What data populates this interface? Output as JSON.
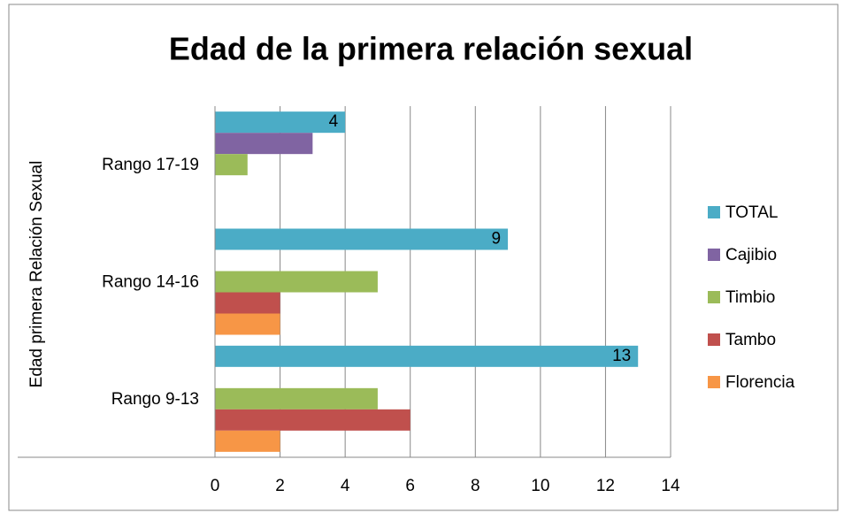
{
  "chart_data": {
    "type": "hbar",
    "title": "Edad de la primera relación sexual",
    "y_label": "Edad primera Relación Sexual",
    "categories": [
      "Rango 17-19",
      "Rango 14-16",
      "Rango 9-13"
    ],
    "series": [
      {
        "name": "TOTAL",
        "color": "#4bacc6",
        "values": [
          4,
          9,
          13
        ],
        "data_labels": true
      },
      {
        "name": "Cajibio",
        "color": "#8064a2",
        "values": [
          3,
          0,
          0
        ]
      },
      {
        "name": "Timbio",
        "color": "#9bbb59",
        "values": [
          1,
          5,
          5
        ]
      },
      {
        "name": "Tambo",
        "color": "#c0504d",
        "values": [
          0,
          2,
          6
        ]
      },
      {
        "name": "Florencia",
        "color": "#f79646",
        "values": [
          0,
          2,
          2
        ]
      }
    ],
    "xlim": [
      0,
      14
    ],
    "xticks": [
      0,
      2,
      4,
      6,
      8,
      10,
      12,
      14
    ],
    "grid": true,
    "legend": "right"
  }
}
